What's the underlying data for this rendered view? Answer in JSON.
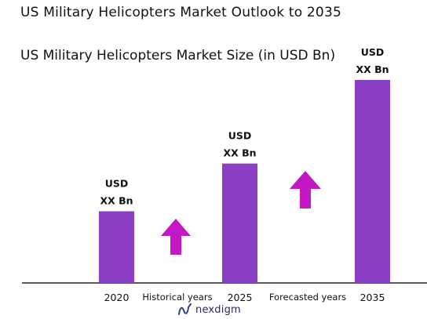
{
  "header": {
    "title": "US Military Helicopters Market Outlook to 2035"
  },
  "colors": {
    "bar": "#8a3fc4",
    "arrow": "#c418c4",
    "axis": "#222222"
  },
  "periods": {
    "historical": "Historical years",
    "forecast": "Forecasted years"
  },
  "logo": {
    "text": "nexdigm",
    "icon": "nexdigm-logo-icon"
  },
  "chart_data": {
    "type": "bar",
    "title": "US Military Helicopters Market Size (in USD Bn)",
    "xlabel": "",
    "ylabel": "",
    "categories": [
      "2020",
      "2025",
      "2035"
    ],
    "values": [
      3,
      5,
      8.5
    ],
    "ylim": [
      0,
      8.5
    ],
    "data_labels": [
      [
        "USD",
        "XX Bn"
      ],
      [
        "USD",
        "XX Bn"
      ],
      [
        "USD",
        "XX Bn"
      ]
    ],
    "grid": false,
    "legend": "none",
    "annotations": [
      "up-arrow",
      "up-arrow"
    ]
  }
}
